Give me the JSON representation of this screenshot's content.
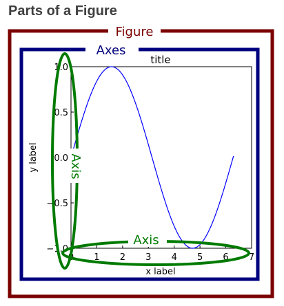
{
  "heading": "Parts of a Figure",
  "labels": {
    "figure": "Figure",
    "axes": "Axes",
    "y_axis": "Axis",
    "x_axis": "Axis"
  },
  "plot": {
    "title": "title",
    "xlabel": "x label",
    "ylabel": "y label",
    "xticks": [
      "0",
      "1",
      "2",
      "3",
      "4",
      "5",
      "6",
      "7"
    ],
    "yticks": [
      "1.0",
      "0.5",
      "0.0",
      "−0.5",
      "−1.0"
    ]
  },
  "chart_data": {
    "type": "line",
    "function": "sin",
    "x_range": [
      0,
      6.3
    ],
    "xlim": [
      0,
      7
    ],
    "ylim": [
      -1,
      1
    ],
    "title": "title",
    "xlabel": "x label",
    "ylabel": "y label"
  },
  "colors": {
    "figure": "#7b0000",
    "axes": "#00007f",
    "axis": "#007a00",
    "line": "#0000ff",
    "heading": "#3f3f3f"
  }
}
